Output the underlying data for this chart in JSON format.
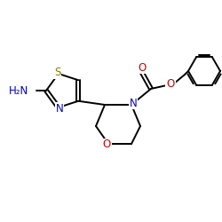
{
  "background_color": "#ffffff",
  "atom_colors": {
    "N": "#0000cc",
    "O": "#cc0000",
    "S": "#808000",
    "C": "#000000"
  },
  "bond_color": "#000000",
  "lw": 1.4,
  "fs": 8.5
}
